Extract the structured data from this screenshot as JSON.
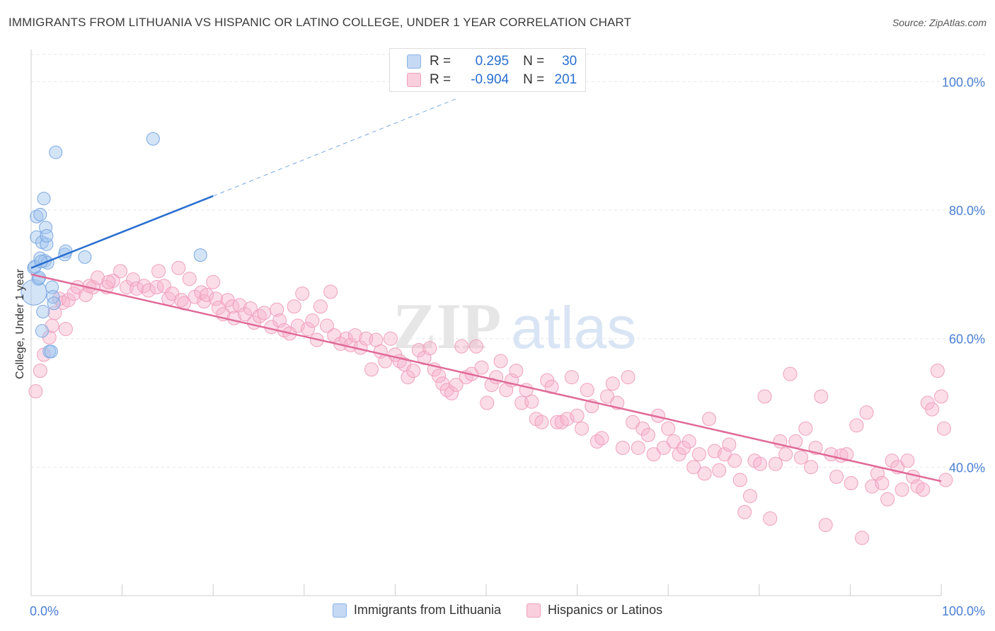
{
  "title": "IMMIGRANTS FROM LITHUANIA VS HISPANIC OR LATINO COLLEGE, UNDER 1 YEAR CORRELATION CHART",
  "source": "Source: ZipAtlas.com",
  "watermark": {
    "zip": "ZIP",
    "atlas": "atlas"
  },
  "stats": [
    {
      "r_label": "R =",
      "r_value": "0.295",
      "n_label": "N =",
      "n_value": "30",
      "color": "#8ab4e8",
      "fill": "#c5d9f5"
    },
    {
      "r_label": "R =",
      "r_value": "-0.904",
      "n_label": "N =",
      "n_value": "201",
      "color": "#f0a0bc",
      "fill": "#f9cfdd"
    }
  ],
  "legend": [
    {
      "label": "Immigrants from Lithuania",
      "color": "#8ab4e8",
      "fill": "#c5d9f5"
    },
    {
      "label": "Hispanics or Latinos",
      "color": "#f0a0bc",
      "fill": "#f9cfdd"
    }
  ],
  "colors": {
    "blue_line": "#2a6fcf",
    "pink_line": "#e06a98",
    "axis_text": "#4a7fd4"
  },
  "chart_data": {
    "type": "scatter",
    "title": "IMMIGRANTS FROM LITHUANIA VS HISPANIC OR LATINO COLLEGE, UNDER 1 YEAR CORRELATION CHART",
    "xlabel": "",
    "ylabel": "College, Under 1 year",
    "xlim": [
      0,
      100
    ],
    "ylim": [
      20,
      105
    ],
    "x_tick_labels": [
      {
        "value": 0,
        "label": "0.0%"
      },
      {
        "value": 100,
        "label": "100.0%"
      }
    ],
    "y_tick_labels": [
      {
        "value": 100,
        "label": "100.0%"
      },
      {
        "value": 80,
        "label": "80.0%"
      },
      {
        "value": 60,
        "label": "60.0%"
      },
      {
        "value": 40,
        "label": "40.0%"
      }
    ],
    "grid": true,
    "legend_position": "bottom",
    "series": [
      {
        "name": "Immigrants from Lithuania",
        "points": [
          [
            0.3,
            67.2
          ],
          [
            0.3,
            71.0
          ],
          [
            0.6,
            79.0
          ],
          [
            0.6,
            75.8
          ],
          [
            0.8,
            69.3
          ],
          [
            1.0,
            79.3
          ],
          [
            1.0,
            72.5
          ],
          [
            1.2,
            75.0
          ],
          [
            1.4,
            81.8
          ],
          [
            1.5,
            72.1
          ],
          [
            1.6,
            77.3
          ],
          [
            1.7,
            74.7
          ],
          [
            1.7,
            76.0
          ],
          [
            1.8,
            71.8
          ],
          [
            2.0,
            58.0
          ],
          [
            2.2,
            58.0
          ],
          [
            2.3,
            68.0
          ],
          [
            2.4,
            66.5
          ],
          [
            2.5,
            65.5
          ],
          [
            1.3,
            64.2
          ],
          [
            1.2,
            61.2
          ],
          [
            0.9,
            69.5
          ],
          [
            0.4,
            71.2
          ],
          [
            2.7,
            89.0
          ],
          [
            3.7,
            73.1
          ],
          [
            3.8,
            73.6
          ],
          [
            5.9,
            72.7
          ],
          [
            13.4,
            91.1
          ],
          [
            18.6,
            73.0
          ],
          [
            1.1,
            72.0
          ]
        ],
        "trend": {
          "x": [
            0,
            20
          ],
          "y": [
            71.0,
            82.2
          ],
          "dashed_to": [
            47,
            97.5
          ]
        }
      },
      {
        "name": "Hispanics or Latinos",
        "points": [
          [
            0.5,
            51.8
          ],
          [
            1.0,
            55.0
          ],
          [
            1.4,
            57.5
          ],
          [
            2.0,
            60.2
          ],
          [
            2.3,
            62.0
          ],
          [
            2.6,
            64.0
          ],
          [
            3.1,
            66.2
          ],
          [
            3.5,
            65.6
          ],
          [
            4.1,
            66.0
          ],
          [
            4.7,
            67.0
          ],
          [
            5.1,
            68.0
          ],
          [
            6.0,
            66.8
          ],
          [
            6.4,
            68.2
          ],
          [
            6.8,
            68.0
          ],
          [
            7.3,
            69.5
          ],
          [
            8.3,
            68.0
          ],
          [
            9.0,
            69.0
          ],
          [
            9.8,
            70.5
          ],
          [
            10.5,
            68.0
          ],
          [
            11.2,
            69.2
          ],
          [
            11.6,
            67.8
          ],
          [
            12.4,
            68.2
          ],
          [
            12.9,
            67.5
          ],
          [
            13.8,
            68.0
          ],
          [
            14.6,
            68.2
          ],
          [
            15.1,
            66.2
          ],
          [
            15.5,
            67.0
          ],
          [
            16.2,
            71.0
          ],
          [
            16.5,
            66.0
          ],
          [
            16.8,
            65.5
          ],
          [
            17.4,
            69.3
          ],
          [
            18.0,
            66.5
          ],
          [
            18.7,
            67.2
          ],
          [
            19.0,
            65.8
          ],
          [
            19.3,
            66.8
          ],
          [
            20.0,
            68.8
          ],
          [
            20.3,
            66.2
          ],
          [
            20.6,
            64.8
          ],
          [
            21.1,
            63.8
          ],
          [
            21.6,
            66.0
          ],
          [
            22.1,
            65.0
          ],
          [
            22.3,
            63.2
          ],
          [
            22.9,
            65.2
          ],
          [
            23.5,
            63.8
          ],
          [
            24.1,
            64.7
          ],
          [
            24.5,
            62.5
          ],
          [
            25.1,
            63.5
          ],
          [
            25.6,
            64.0
          ],
          [
            26.4,
            61.8
          ],
          [
            27.0,
            64.5
          ],
          [
            27.3,
            62.8
          ],
          [
            27.8,
            61.3
          ],
          [
            28.4,
            60.8
          ],
          [
            28.9,
            65.0
          ],
          [
            29.3,
            62.0
          ],
          [
            29.8,
            67.0
          ],
          [
            30.4,
            61.5
          ],
          [
            30.9,
            62.8
          ],
          [
            31.4,
            59.8
          ],
          [
            31.8,
            65.0
          ],
          [
            32.5,
            62.0
          ],
          [
            32.9,
            67.3
          ],
          [
            33.3,
            60.5
          ],
          [
            34.0,
            59.2
          ],
          [
            34.6,
            60.0
          ],
          [
            35.1,
            59.0
          ],
          [
            35.6,
            60.5
          ],
          [
            36.2,
            58.6
          ],
          [
            36.8,
            60.0
          ],
          [
            37.4,
            55.2
          ],
          [
            37.9,
            59.8
          ],
          [
            38.4,
            58.0
          ],
          [
            38.9,
            56.5
          ],
          [
            39.5,
            60.0
          ],
          [
            40.0,
            57.5
          ],
          [
            40.5,
            56.5
          ],
          [
            41.0,
            56.0
          ],
          [
            41.4,
            54.0
          ],
          [
            42.0,
            55.0
          ],
          [
            42.6,
            58.2
          ],
          [
            43.2,
            57.0
          ],
          [
            43.8,
            58.5
          ],
          [
            44.3,
            55.2
          ],
          [
            44.8,
            54.2
          ],
          [
            45.2,
            53.0
          ],
          [
            45.7,
            52.0
          ],
          [
            46.2,
            51.5
          ],
          [
            46.7,
            52.8
          ],
          [
            47.3,
            58.8
          ],
          [
            47.8,
            54.0
          ],
          [
            48.4,
            54.5
          ],
          [
            48.9,
            58.8
          ],
          [
            49.5,
            55.5
          ],
          [
            50.1,
            50.0
          ],
          [
            50.6,
            52.8
          ],
          [
            51.1,
            54.0
          ],
          [
            51.6,
            56.5
          ],
          [
            52.2,
            52.0
          ],
          [
            52.8,
            53.5
          ],
          [
            53.3,
            55.0
          ],
          [
            53.9,
            50.0
          ],
          [
            54.4,
            52.0
          ],
          [
            55.0,
            50.2
          ],
          [
            55.5,
            47.5
          ],
          [
            56.1,
            47.0
          ],
          [
            56.7,
            53.5
          ],
          [
            57.2,
            52.5
          ],
          [
            57.8,
            47.0
          ],
          [
            58.3,
            47.0
          ],
          [
            58.9,
            47.5
          ],
          [
            59.4,
            54.0
          ],
          [
            60.0,
            48.0
          ],
          [
            60.5,
            46.0
          ],
          [
            61.1,
            52.0
          ],
          [
            61.6,
            49.5
          ],
          [
            62.2,
            44.0
          ],
          [
            62.7,
            44.5
          ],
          [
            63.3,
            51.0
          ],
          [
            63.9,
            53.0
          ],
          [
            64.4,
            50.0
          ],
          [
            65.0,
            43.0
          ],
          [
            65.6,
            54.0
          ],
          [
            66.1,
            47.0
          ],
          [
            66.7,
            43.0
          ],
          [
            67.2,
            46.0
          ],
          [
            67.8,
            45.0
          ],
          [
            68.4,
            42.0
          ],
          [
            68.9,
            48.0
          ],
          [
            69.5,
            43.0
          ],
          [
            70.0,
            46.0
          ],
          [
            70.6,
            44.0
          ],
          [
            71.2,
            42.0
          ],
          [
            71.7,
            43.0
          ],
          [
            72.3,
            44.0
          ],
          [
            72.8,
            40.0
          ],
          [
            73.4,
            42.0
          ],
          [
            74.0,
            39.0
          ],
          [
            74.5,
            47.5
          ],
          [
            75.1,
            42.5
          ],
          [
            75.6,
            39.5
          ],
          [
            76.2,
            42.0
          ],
          [
            76.7,
            43.5
          ],
          [
            77.3,
            41.0
          ],
          [
            77.9,
            38.0
          ],
          [
            78.4,
            33.0
          ],
          [
            79.0,
            35.5
          ],
          [
            79.5,
            41.0
          ],
          [
            80.1,
            40.5
          ],
          [
            80.6,
            51.0
          ],
          [
            81.2,
            32.0
          ],
          [
            81.8,
            40.5
          ],
          [
            82.3,
            44.0
          ],
          [
            82.9,
            42.0
          ],
          [
            83.4,
            54.5
          ],
          [
            84.0,
            44.0
          ],
          [
            84.6,
            41.5
          ],
          [
            85.1,
            46.0
          ],
          [
            85.7,
            40.0
          ],
          [
            86.2,
            43.0
          ],
          [
            86.8,
            51.0
          ],
          [
            87.3,
            31.0
          ],
          [
            87.9,
            42.0
          ],
          [
            88.5,
            38.5
          ],
          [
            89.0,
            41.8
          ],
          [
            89.6,
            42.0
          ],
          [
            90.1,
            37.5
          ],
          [
            90.7,
            46.5
          ],
          [
            91.3,
            29.0
          ],
          [
            91.8,
            48.5
          ],
          [
            92.4,
            37.0
          ],
          [
            93.0,
            39.0
          ],
          [
            93.5,
            37.5
          ],
          [
            94.1,
            35.0
          ],
          [
            94.6,
            41.0
          ],
          [
            95.2,
            40.0
          ],
          [
            95.7,
            36.5
          ],
          [
            96.3,
            41.0
          ],
          [
            96.9,
            38.5
          ],
          [
            97.4,
            37.0
          ],
          [
            98.0,
            36.5
          ],
          [
            98.5,
            50.0
          ],
          [
            99.0,
            49.0
          ],
          [
            99.6,
            55.0
          ],
          [
            100.0,
            51.0
          ],
          [
            100.3,
            46.0
          ],
          [
            100.5,
            38.0
          ],
          [
            8.5,
            68.8
          ],
          [
            14.0,
            70.5
          ],
          [
            3.8,
            61.5
          ]
        ],
        "trend": {
          "x": [
            0,
            100
          ],
          "y": [
            70.0,
            37.8
          ]
        }
      }
    ]
  }
}
